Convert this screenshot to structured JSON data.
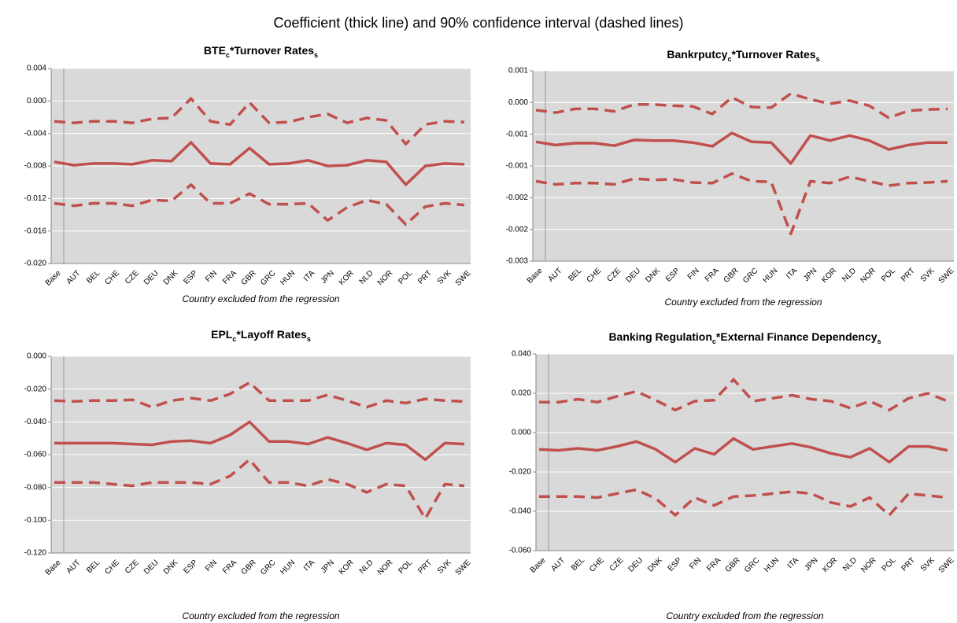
{
  "title": "Coefficient (thick line) and 90% confidence interval (dashed lines)",
  "chart_data": [
    {
      "type": "line",
      "title": [
        "BTE",
        "c",
        "*Turnover Rates",
        "s"
      ],
      "x_label": "Country excluded from the regression",
      "categories": [
        "Base",
        "AUT",
        "BEL",
        "CHE",
        "CZE",
        "DEU",
        "DNK",
        "ESP",
        "FIN",
        "FRA",
        "GBR",
        "GRC",
        "HUN",
        "ITA",
        "JPN",
        "KOR",
        "NLD",
        "NOR",
        "POL",
        "PRT",
        "SVK",
        "SWE"
      ],
      "ylim": [
        -0.02,
        0.004
      ],
      "yticks": [
        {
          "value": 0.004,
          "label": "0.004"
        },
        {
          "value": 0,
          "label": "0.000"
        },
        {
          "value": -0.004,
          "label": "-0.004"
        },
        {
          "value": -0.008,
          "label": "-0.008"
        },
        {
          "value": -0.012,
          "label": "-0.012"
        },
        {
          "value": -0.016,
          "label": "-0.016"
        },
        {
          "value": -0.02,
          "label": "-0.020"
        }
      ],
      "grid": true,
      "series": [
        {
          "color": "#c0504d",
          "style": "solid",
          "values": [
            -0.0075,
            -0.0079,
            -0.0077,
            -0.0077,
            -0.0078,
            -0.0073,
            -0.0074,
            -0.0051,
            -0.0077,
            -0.0078,
            -0.0058,
            -0.0078,
            -0.0077,
            -0.0073,
            -0.008,
            -0.0079,
            -0.0073,
            -0.0075,
            -0.0103,
            -0.008,
            -0.0077,
            -0.0078
          ]
        },
        {
          "color": "#c0504d",
          "style": "dashed",
          "values": [
            -0.0025,
            -0.0027,
            -0.0025,
            -0.0025,
            -0.0027,
            -0.0022,
            -0.0021,
            0.0003,
            -0.0025,
            -0.0029,
            -0.0002,
            -0.0027,
            -0.0026,
            -0.002,
            -0.0016,
            -0.0027,
            -0.0021,
            -0.0024,
            -0.0053,
            -0.0029,
            -0.0025,
            -0.0026
          ]
        },
        {
          "color": "#c0504d",
          "style": "dashed",
          "values": [
            -0.0126,
            -0.0129,
            -0.0126,
            -0.0126,
            -0.0129,
            -0.0122,
            -0.0123,
            -0.0103,
            -0.0126,
            -0.0126,
            -0.0114,
            -0.0127,
            -0.0127,
            -0.0126,
            -0.0147,
            -0.0131,
            -0.0122,
            -0.0127,
            -0.0152,
            -0.013,
            -0.0126,
            -0.0128
          ]
        }
      ]
    },
    {
      "type": "line",
      "title": [
        "Bankrputcy",
        "c",
        "*Turnover Rates",
        "s"
      ],
      "x_label": "Country excluded from the regression",
      "categories": [
        "Base",
        "AUT",
        "BEL",
        "CHE",
        "CZE",
        "DEU",
        "DNK",
        "ESP",
        "FIN",
        "FRA",
        "GBR",
        "GRC",
        "HUN",
        "ITA",
        "JPN",
        "KOR",
        "NLD",
        "NOR",
        "POL",
        "PRT",
        "SVK",
        "SWE"
      ],
      "ylim": [
        -0.0025,
        0.0005
      ],
      "yticks": [
        {
          "value": 0.0005,
          "label": "0.001"
        },
        {
          "value": 0,
          "label": "0.000"
        },
        {
          "value": -0.0005,
          "label": "-0.001"
        },
        {
          "value": -0.001,
          "label": "-0.001"
        },
        {
          "value": -0.0015,
          "label": "-0.002"
        },
        {
          "value": -0.002,
          "label": "-0.002"
        },
        {
          "value": -0.0025,
          "label": "-0.003"
        }
      ],
      "grid": true,
      "series": [
        {
          "color": "#c0504d",
          "style": "solid",
          "values": [
            -0.00062,
            -0.00067,
            -0.00064,
            -0.00064,
            -0.00068,
            -0.00059,
            -0.0006,
            -0.0006,
            -0.00063,
            -0.00069,
            -0.00048,
            -0.00062,
            -0.00063,
            -0.00096,
            -0.00052,
            -0.0006,
            -0.00052,
            -0.0006,
            -0.00074,
            -0.00067,
            -0.00063,
            -0.00063
          ]
        },
        {
          "color": "#c0504d",
          "style": "dashed",
          "values": [
            -0.00012,
            -0.00016,
            -0.0001,
            -0.0001,
            -0.00014,
            -3e-05,
            -3e-05,
            -5e-05,
            -6e-05,
            -0.00018,
            8e-05,
            -7e-05,
            -8e-05,
            0.00014,
            5e-05,
            -2e-05,
            3e-05,
            -5e-05,
            -0.00024,
            -0.00013,
            -0.00011,
            -0.0001
          ]
        },
        {
          "color": "#c0504d",
          "style": "dashed",
          "values": [
            -0.00124,
            -0.00129,
            -0.00127,
            -0.00127,
            -0.00129,
            -0.0012,
            -0.00122,
            -0.00121,
            -0.00126,
            -0.00127,
            -0.00112,
            -0.00124,
            -0.00125,
            -0.00207,
            -0.00124,
            -0.00127,
            -0.00117,
            -0.00124,
            -0.00131,
            -0.00127,
            -0.00126,
            -0.00124
          ]
        }
      ]
    },
    {
      "type": "line",
      "title": [
        "EPL",
        "c",
        "*Layoff Rates",
        "s"
      ],
      "x_label": "Country excluded from the regression",
      "categories": [
        "Base",
        "AUT",
        "BEL",
        "CHE",
        "CZE",
        "DEU",
        "DNK",
        "ESP",
        "FIN",
        "FRA",
        "GBR",
        "GRC",
        "HUN",
        "ITA",
        "JPN",
        "KOR",
        "NLD",
        "NOR",
        "POL",
        "PRT",
        "SVK",
        "SWE"
      ],
      "ylim": [
        -0.12,
        0
      ],
      "yticks": [
        {
          "value": 0,
          "label": "0.000"
        },
        {
          "value": -0.02,
          "label": "-0.020"
        },
        {
          "value": -0.04,
          "label": "-0.040"
        },
        {
          "value": -0.06,
          "label": "-0.060"
        },
        {
          "value": -0.08,
          "label": "-0.080"
        },
        {
          "value": -0.1,
          "label": "-0.100"
        },
        {
          "value": -0.12,
          "label": "-0.120"
        }
      ],
      "grid": true,
      "series": [
        {
          "color": "#c0504d",
          "style": "solid",
          "values": [
            -0.053,
            -0.053,
            -0.053,
            -0.053,
            -0.0535,
            -0.054,
            -0.052,
            -0.0515,
            -0.053,
            -0.048,
            -0.04,
            -0.052,
            -0.052,
            -0.0535,
            -0.0495,
            -0.053,
            -0.057,
            -0.053,
            -0.054,
            -0.063,
            -0.053,
            -0.0535
          ]
        },
        {
          "color": "#c0504d",
          "style": "dashed",
          "values": [
            -0.027,
            -0.0275,
            -0.027,
            -0.027,
            -0.0265,
            -0.031,
            -0.027,
            -0.0255,
            -0.027,
            -0.023,
            -0.016,
            -0.027,
            -0.027,
            -0.027,
            -0.0235,
            -0.027,
            -0.031,
            -0.027,
            -0.0285,
            -0.026,
            -0.027,
            -0.0275
          ]
        },
        {
          "color": "#c0504d",
          "style": "dashed",
          "values": [
            -0.077,
            -0.077,
            -0.077,
            -0.078,
            -0.079,
            -0.077,
            -0.077,
            -0.077,
            -0.078,
            -0.073,
            -0.063,
            -0.077,
            -0.077,
            -0.079,
            -0.075,
            -0.078,
            -0.083,
            -0.078,
            -0.079,
            -0.099,
            -0.078,
            -0.079
          ]
        }
      ]
    },
    {
      "type": "line",
      "title": [
        "Banking Regulation",
        "c",
        "*External Finance Dependency",
        "s"
      ],
      "x_label": "Country excluded from the regression",
      "categories": [
        "Base",
        "AUT",
        "BEL",
        "CHE",
        "CZE",
        "DEU",
        "DNK",
        "ESP",
        "FIN",
        "FRA",
        "GBR",
        "GRC",
        "HUN",
        "ITA",
        "JPN",
        "KOR",
        "NLD",
        "NOR",
        "POL",
        "PRT",
        "SVK",
        "SWE"
      ],
      "ylim": [
        -0.06,
        0.04
      ],
      "yticks": [
        {
          "value": 0.04,
          "label": "0.040"
        },
        {
          "value": 0.02,
          "label": "0.020"
        },
        {
          "value": 0,
          "label": "0.000"
        },
        {
          "value": -0.02,
          "label": "-0.020"
        },
        {
          "value": -0.04,
          "label": "-0.040"
        },
        {
          "value": -0.06,
          "label": "-0.060"
        }
      ],
      "grid": true,
      "series": [
        {
          "color": "#c0504d",
          "style": "solid",
          "values": [
            -0.0085,
            -0.009,
            -0.008,
            -0.009,
            -0.007,
            -0.0045,
            -0.0085,
            -0.015,
            -0.008,
            -0.011,
            -0.003,
            -0.0085,
            -0.007,
            -0.0055,
            -0.0075,
            -0.0105,
            -0.0125,
            -0.008,
            -0.015,
            -0.007,
            -0.007,
            -0.009
          ]
        },
        {
          "color": "#c0504d",
          "style": "dashed",
          "values": [
            0.0155,
            0.0155,
            0.017,
            0.0155,
            0.0185,
            0.021,
            0.0165,
            0.0115,
            0.016,
            0.0165,
            0.027,
            0.016,
            0.0175,
            0.019,
            0.017,
            0.016,
            0.0125,
            0.016,
            0.0115,
            0.0175,
            0.02,
            0.016
          ]
        },
        {
          "color": "#c0504d",
          "style": "dashed",
          "values": [
            -0.0325,
            -0.0325,
            -0.0325,
            -0.033,
            -0.031,
            -0.029,
            -0.0335,
            -0.042,
            -0.033,
            -0.037,
            -0.0325,
            -0.032,
            -0.031,
            -0.03,
            -0.031,
            -0.0355,
            -0.0375,
            -0.033,
            -0.042,
            -0.031,
            -0.032,
            -0.033
          ]
        }
      ]
    }
  ]
}
